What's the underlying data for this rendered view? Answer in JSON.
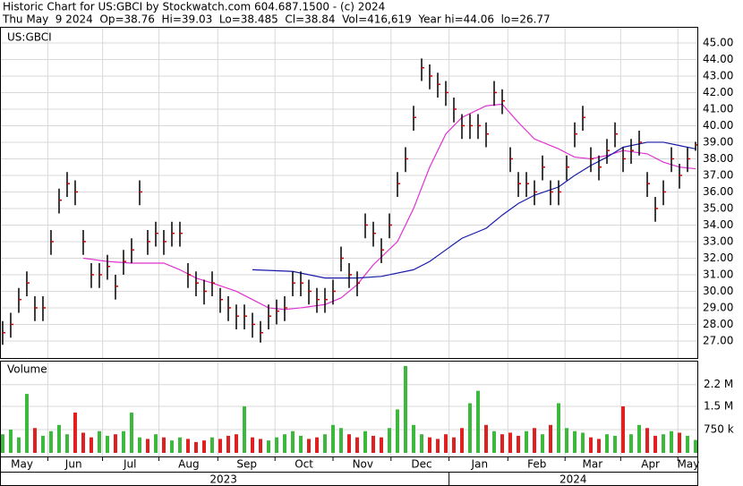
{
  "chart_data": {
    "type": "ohlc",
    "title": "Historic Chart for US:GBCI by Stockwatch.com 604.687.1500 - (c) 2024",
    "subtitle": "Thu May  9 2024  Op=38.76  Hi=39.03  Lo=38.485  Cl=38.84  Vol=416,619  Year hi=44.06  lo=26.77",
    "symbol_label": "US:GBCI",
    "bar_color": "#000000",
    "close_color": "#cc0000",
    "xlim": [
      -0.33,
      86.33
    ],
    "ylim": [
      25.97,
      45.97
    ],
    "yticks": [
      {
        "value": 27,
        "label": "27.00"
      },
      {
        "value": 28,
        "label": "28.00"
      },
      {
        "value": 29,
        "label": "29.00"
      },
      {
        "value": 30,
        "label": "30.00"
      },
      {
        "value": 31,
        "label": "31.00"
      },
      {
        "value": 32,
        "label": "32.00"
      },
      {
        "value": 33,
        "label": "33.00"
      },
      {
        "value": 34,
        "label": "34.00"
      },
      {
        "value": 35,
        "label": "35.00"
      },
      {
        "value": 36,
        "label": "36.00"
      },
      {
        "value": 37,
        "label": "37.00"
      },
      {
        "value": 38,
        "label": "38.00"
      },
      {
        "value": 39,
        "label": "39.00"
      },
      {
        "value": 40,
        "label": "40.00"
      },
      {
        "value": 41,
        "label": "41.00"
      },
      {
        "value": 42,
        "label": "42.00"
      },
      {
        "value": 43,
        "label": "43.00"
      },
      {
        "value": 44,
        "label": "44.00"
      },
      {
        "value": 45,
        "label": "45.00"
      }
    ],
    "xgrid": [
      5.6,
      12.4,
      19.4,
      26.7,
      33.8,
      41,
      48.2,
      55.4,
      62.7,
      69.8,
      76.7,
      83.8
    ],
    "month_labels": [
      {
        "value": 2.4,
        "label": "May"
      },
      {
        "value": 8.8,
        "label": "Jun"
      },
      {
        "value": 15.8,
        "label": "Jul"
      },
      {
        "value": 23.1,
        "label": "Aug"
      },
      {
        "value": 30.3,
        "label": "Sep"
      },
      {
        "value": 37.4,
        "label": "Oct"
      },
      {
        "value": 44.7,
        "label": "Nov"
      },
      {
        "value": 52,
        "label": "Dec"
      },
      {
        "value": 59.2,
        "label": "Jan"
      },
      {
        "value": 66.3,
        "label": "Feb"
      },
      {
        "value": 73.2,
        "label": "Mar"
      },
      {
        "value": 80.4,
        "label": "Apr"
      },
      {
        "value": 85.1,
        "label": "May"
      }
    ],
    "year_labels": [
      {
        "value": 27.4,
        "label": "2023"
      },
      {
        "value": 70.8,
        "label": "2024"
      }
    ],
    "year_break": 55.4,
    "high": [
      28.2,
      28.7,
      30.2,
      31.2,
      29.7,
      29.7,
      33.7,
      36.2,
      37.2,
      36.7,
      33.7,
      31.7,
      31.7,
      32.2,
      31,
      32.5,
      33.2,
      36.7,
      33.7,
      34.2,
      33.7,
      34.2,
      34.2,
      31.7,
      31.2,
      30.7,
      31.2,
      30.2,
      29.7,
      29.2,
      29.2,
      28.7,
      28.2,
      29.2,
      29.5,
      29.7,
      31.2,
      31.2,
      30.7,
      30.2,
      30.2,
      30.7,
      32.7,
      31.7,
      31.2,
      34.7,
      34.2,
      33.2,
      34.7,
      37.2,
      38.7,
      41.2,
      44.06,
      43.7,
      43.2,
      42.7,
      41.7,
      40.7,
      40.7,
      40.7,
      40.2,
      42.7,
      42.2,
      38.7,
      37.2,
      37.2,
      36.7,
      38.2,
      36.7,
      36.7,
      38.2,
      40.2,
      41.2,
      38.7,
      38.2,
      39.2,
      40.2,
      38.7,
      39.2,
      39.7,
      37.2,
      35.7,
      36.7,
      38.7,
      37.7,
      38.7,
      39.03
    ],
    "low": [
      26.77,
      27.2,
      28.7,
      29.7,
      28.2,
      28.2,
      32.2,
      34.7,
      35.7,
      35.2,
      32.2,
      30.2,
      30.2,
      30.7,
      29.5,
      31,
      31.7,
      35.2,
      32.2,
      32.7,
      32.2,
      32.7,
      32.7,
      30.2,
      29.7,
      29.2,
      29.7,
      28.7,
      28.2,
      27.7,
      27.7,
      27.2,
      26.9,
      27.7,
      28,
      28.2,
      29.7,
      29.7,
      29.2,
      28.7,
      28.7,
      29.2,
      31.2,
      30.2,
      29.7,
      33.2,
      32.7,
      31.7,
      33.2,
      35.7,
      37.2,
      39.7,
      42.7,
      42.2,
      41.7,
      41.2,
      40.2,
      39.2,
      39.2,
      39.2,
      38.7,
      41.2,
      40.7,
      37.2,
      35.7,
      35.7,
      35.2,
      36.7,
      35.2,
      35.2,
      36.7,
      38.7,
      39.7,
      37.2,
      36.7,
      37.7,
      38.7,
      37.2,
      37.7,
      38.2,
      35.7,
      34.2,
      35.2,
      37.2,
      36.2,
      37.2,
      38.485
    ],
    "close": [
      27.5,
      28,
      29.5,
      30.5,
      29,
      29,
      33,
      35.5,
      36.5,
      36,
      33,
      31,
      31,
      31.5,
      30.3,
      31.8,
      32.5,
      36,
      33,
      33.5,
      33,
      33.5,
      33.5,
      31,
      30.5,
      30,
      30.5,
      29.5,
      29,
      28.5,
      28.5,
      28,
      27.5,
      28.5,
      28.8,
      29,
      30.5,
      30.5,
      30,
      29.5,
      29.5,
      30,
      32,
      31,
      30.5,
      34,
      33.5,
      32.5,
      34,
      36.5,
      38,
      40.5,
      43.5,
      43,
      42.5,
      42,
      41,
      40,
      40,
      40,
      39.5,
      42,
      41.5,
      38,
      36.5,
      36.5,
      36,
      37.5,
      36,
      36,
      37.5,
      39.5,
      40.5,
      38,
      37.5,
      38.5,
      39.5,
      38,
      38.5,
      39,
      36.5,
      35,
      36,
      38,
      37,
      38,
      38.84
    ],
    "averages": [
      {
        "color": "#e030d0",
        "x": [
          10,
          13,
          16,
          20,
          22,
          24,
          26,
          29,
          31,
          33,
          35,
          37,
          40,
          42,
          44,
          46,
          49,
          51,
          53,
          55,
          57,
          60,
          62,
          64,
          66,
          69,
          71,
          73,
          75,
          77,
          80,
          82,
          84,
          86
        ],
        "values": [
          32,
          31.8,
          31.7,
          31.7,
          31.3,
          30.8,
          30.5,
          30,
          29.5,
          29,
          28.9,
          29,
          29.2,
          29.6,
          30.4,
          31.6,
          33,
          35,
          37.5,
          39.5,
          40.5,
          41.2,
          41.3,
          40.2,
          39.2,
          38.6,
          38.1,
          38,
          38.2,
          38.5,
          38.3,
          37.8,
          37.5,
          37.4
        ]
      },
      {
        "color": "#1a1aa8",
        "x": [
          31,
          36,
          40,
          44,
          47,
          51,
          53,
          55,
          57,
          60,
          62,
          64,
          66,
          69,
          71,
          73,
          75,
          77,
          80,
          82,
          84,
          86
        ],
        "values": [
          31.3,
          31.2,
          30.8,
          30.8,
          30.9,
          31.3,
          31.8,
          32.5,
          33.2,
          33.8,
          34.6,
          35.3,
          35.8,
          36.3,
          37,
          37.6,
          38.1,
          38.7,
          39,
          39,
          38.8,
          38.6
        ]
      }
    ],
    "volume": {
      "label": "Volume",
      "up_color": "#3cb83c",
      "down_color": "#e02020",
      "ylim": [
        0,
        2970000
      ],
      "yticks": [
        {
          "value": 750000,
          "label": "750 k"
        },
        {
          "value": 1500000,
          "label": "1.5 M"
        },
        {
          "value": 2200000,
          "label": "2.2 M"
        }
      ],
      "values": [
        600000,
        750000,
        500000,
        1900000,
        800000,
        550000,
        700000,
        900000,
        600000,
        1300000,
        650000,
        500000,
        700000,
        550000,
        600000,
        700000,
        1300000,
        500000,
        450000,
        600000,
        500000,
        400000,
        500000,
        450000,
        350000,
        400000,
        500000,
        450000,
        550000,
        600000,
        1500000,
        500000,
        450000,
        400000,
        500000,
        600000,
        700000,
        550000,
        450000,
        500000,
        600000,
        900000,
        800000,
        600000,
        500000,
        700000,
        550000,
        500000,
        800000,
        1400000,
        2800000,
        900000,
        600000,
        500000,
        450000,
        600000,
        500000,
        800000,
        1600000,
        2000000,
        900000,
        700000,
        600000,
        650000,
        550000,
        700000,
        800000,
        600000,
        900000,
        1600000,
        800000,
        700000,
        650000,
        500000,
        450000,
        600000,
        550000,
        1500000,
        600000,
        900000,
        800000,
        550000,
        600000,
        700000,
        650000,
        550000,
        416619
      ]
    }
  }
}
